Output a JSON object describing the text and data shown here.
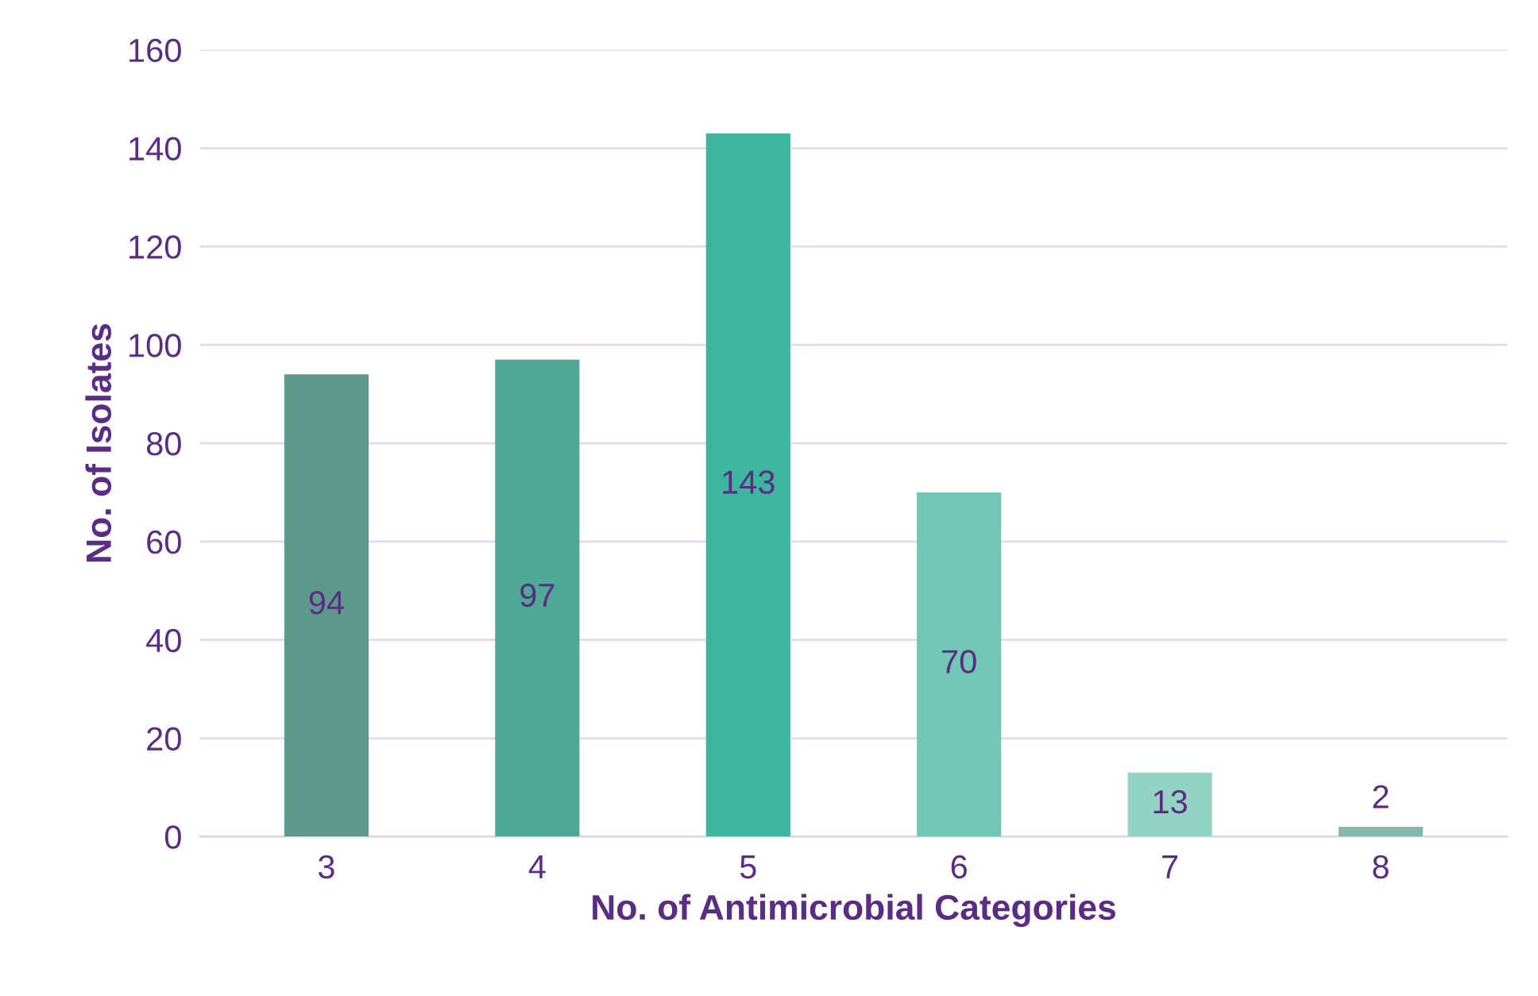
{
  "chart_data": {
    "type": "bar",
    "xlabel": "No. of Antimicrobial Categories",
    "ylabel": "No. of Isolates",
    "categories": [
      "3",
      "4",
      "5",
      "6",
      "7",
      "8"
    ],
    "values": [
      94,
      97,
      143,
      70,
      13,
      2
    ],
    "colors": [
      "#5e9a8c",
      "#4fa895",
      "#3db59f",
      "#72c6b4",
      "#93d3c3",
      "#84b8ae"
    ],
    "ylim": [
      0,
      160
    ],
    "yticks": [
      0,
      20,
      40,
      60,
      80,
      100,
      120,
      140,
      160
    ],
    "grid": "y",
    "data_labels": true
  }
}
